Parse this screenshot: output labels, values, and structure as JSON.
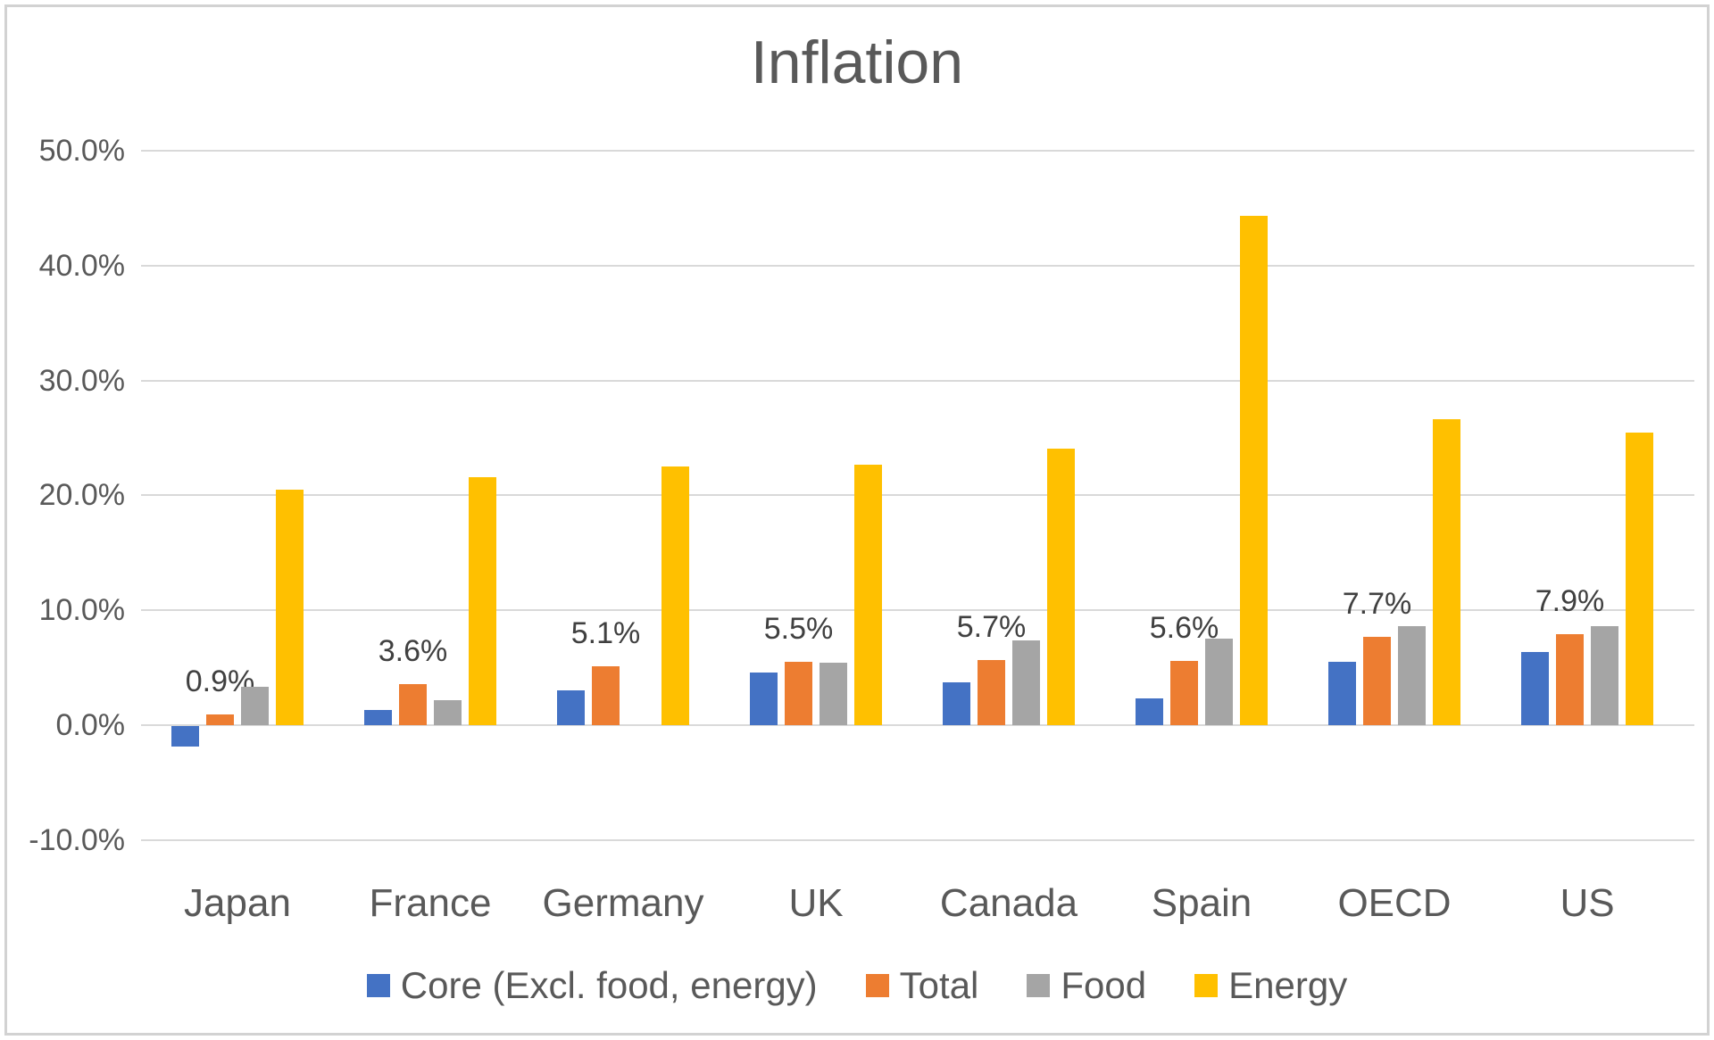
{
  "frame": {
    "title": "Inflation"
  },
  "chart_data": {
    "type": "bar",
    "title": "Inflation",
    "categories": [
      "Japan",
      "France",
      "Germany",
      "UK",
      "Canada",
      "Spain",
      "OECD",
      "US"
    ],
    "series": [
      {
        "name": "Core (Excl. food, energy)",
        "key": "core",
        "color": "#4472C4",
        "values": [
          -1.8,
          1.3,
          3.0,
          4.6,
          3.7,
          2.3,
          5.5,
          6.4
        ]
      },
      {
        "name": "Total",
        "key": "total",
        "color": "#ED7D31",
        "values": [
          0.9,
          3.6,
          5.1,
          5.5,
          5.7,
          5.6,
          7.7,
          7.9
        ],
        "data_labels": [
          "0.9%",
          "3.6%",
          "5.1%",
          "5.5%",
          "5.7%",
          "5.6%",
          "7.7%",
          "7.9%"
        ]
      },
      {
        "name": "Food",
        "key": "food",
        "color": "#A5A5A5",
        "values": [
          3.3,
          2.2,
          null,
          5.4,
          7.4,
          7.5,
          8.6,
          8.6
        ]
      },
      {
        "name": "Energy",
        "key": "energy",
        "color": "#FFC000",
        "values": [
          20.5,
          21.6,
          22.5,
          22.7,
          24.1,
          44.3,
          26.6,
          25.5
        ]
      }
    ],
    "ylim": [
      -10,
      50
    ],
    "y_ticks": [
      {
        "label": "50.0%",
        "value": 50
      },
      {
        "label": "40.0%",
        "value": 40
      },
      {
        "label": "30.0%",
        "value": 30
      },
      {
        "label": "20.0%",
        "value": 20
      },
      {
        "label": "10.0%",
        "value": 10
      },
      {
        "label": "0.0%",
        "value": 0
      },
      {
        "label": "-10.0%",
        "value": -10
      }
    ],
    "grid": true,
    "legend_position": "bottom",
    "gridline_color": "#D9D9D9",
    "text_color": "#595959",
    "data_label_color": "#404040"
  }
}
